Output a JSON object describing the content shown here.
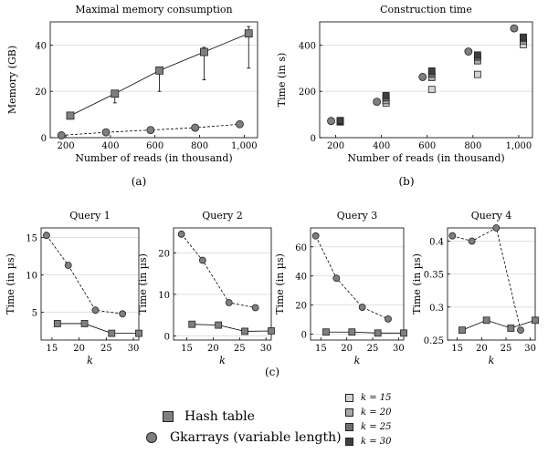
{
  "colors": {
    "marker_fill": "#7f7f7f",
    "marker_stroke": "#222222",
    "grid": "#d9d9d9",
    "k15": "#d3d3d3",
    "k20": "#a9a9a9",
    "k25": "#6e6e6e",
    "k30": "#3f3f3f"
  },
  "captions": {
    "a": "(a)",
    "b": "(b)",
    "c": "(c)"
  },
  "legend": {
    "hash_table": "Hash table",
    "gkarrays": "Gkarrays (variable length)",
    "k15": "k = 15",
    "k20": "k = 20",
    "k25": "k = 25",
    "k30": "k = 30"
  },
  "chart_data": [
    {
      "id": "memory",
      "type": "line",
      "title": "Maximal memory consumption",
      "xlabel": "Number of reads (in thousand)",
      "ylabel": "Memory (GB)",
      "xlim": [
        130,
        1060
      ],
      "ylim": [
        0,
        50
      ],
      "xticks": [
        200,
        400,
        600,
        800,
        1000
      ],
      "xtick_labels": [
        "200",
        "400",
        "600",
        "800",
        "1,000"
      ],
      "yticks": [
        0,
        20,
        40
      ],
      "grid": "horizontal",
      "series": [
        {
          "name": "Hash table",
          "marker": "square",
          "dash": false,
          "x": [
            220,
            420,
            620,
            820,
            1020
          ],
          "y": [
            9.5,
            19,
            29,
            37,
            45
          ],
          "err_low": [
            9.5,
            15,
            20,
            25,
            30
          ],
          "err_high": [
            9.5,
            20,
            30,
            39,
            48
          ]
        },
        {
          "name": "Gkarrays (variable length)",
          "marker": "circle",
          "dash": true,
          "x": [
            180,
            380,
            580,
            780,
            980
          ],
          "y": [
            1,
            2.3,
            3.3,
            4.3,
            5.8
          ]
        }
      ]
    },
    {
      "id": "construction",
      "type": "scatter",
      "title": "Construction time",
      "xlabel": "Number of reads (in thousand)",
      "ylabel": "Time (in s)",
      "xlim": [
        130,
        1060
      ],
      "ylim": [
        0,
        500
      ],
      "xticks": [
        200,
        400,
        600,
        800,
        1000
      ],
      "xtick_labels": [
        "200",
        "400",
        "600",
        "800",
        "1,000"
      ],
      "yticks": [
        0,
        200,
        400
      ],
      "grid": "horizontal",
      "circle_points": [
        {
          "x": 180,
          "y": 72
        },
        {
          "x": 380,
          "y": 155
        },
        {
          "x": 580,
          "y": 262
        },
        {
          "x": 780,
          "y": 372
        },
        {
          "x": 980,
          "y": 472
        }
      ],
      "square_series": [
        {
          "name": "k = 15",
          "color_key": "k15",
          "x": [
            220,
            420,
            620,
            820,
            1020
          ],
          "y": [
            68,
            150,
            208,
            273,
            402
          ]
        },
        {
          "name": "k = 20",
          "color_key": "k20",
          "x": [
            220,
            420,
            620,
            820,
            1020
          ],
          "y": [
            70,
            160,
            260,
            332,
            418
          ]
        },
        {
          "name": "k = 25",
          "color_key": "k25",
          "x": [
            220,
            420,
            620,
            820,
            1020
          ],
          "y": [
            72,
            172,
            276,
            348,
            428
          ]
        },
        {
          "name": "k = 30",
          "color_key": "k30",
          "x": [
            220,
            420,
            620,
            820,
            1020
          ],
          "y": [
            74,
            182,
            288,
            357,
            434
          ]
        }
      ]
    },
    {
      "id": "q1",
      "type": "line",
      "title": "Query 1",
      "xlabel": "k",
      "ylabel": "Time (in µs)",
      "xlim": [
        13,
        31
      ],
      "ylim": [
        1.3,
        16.3
      ],
      "xticks": [
        15,
        20,
        25,
        30
      ],
      "yticks": [
        5,
        10,
        15
      ],
      "ytick_labels": [
        "5",
        "10",
        "15"
      ],
      "grid": "horizontal",
      "series": [
        {
          "name": "Gkarrays (variable length)",
          "marker": "circle",
          "dash": true,
          "x": [
            14,
            18,
            23,
            28
          ],
          "y": [
            15.3,
            11.3,
            5.3,
            4.8
          ]
        },
        {
          "name": "Hash table",
          "marker": "square",
          "dash": false,
          "x": [
            16,
            21,
            26,
            31
          ],
          "y": [
            3.5,
            3.5,
            2.2,
            2.2
          ]
        }
      ]
    },
    {
      "id": "q2",
      "type": "line",
      "title": "Query 2",
      "xlabel": "k",
      "ylabel": "Time (in µs)",
      "xlim": [
        12.5,
        31
      ],
      "ylim": [
        -1,
        26
      ],
      "xticks": [
        15,
        20,
        25,
        30
      ],
      "yticks": [
        0,
        10,
        20
      ],
      "ytick_labels": [
        "0",
        "10",
        "20"
      ],
      "grid": "horizontal",
      "series": [
        {
          "name": "Gkarrays (variable length)",
          "marker": "circle",
          "dash": true,
          "x": [
            14,
            18,
            23,
            28
          ],
          "y": [
            24.5,
            18.2,
            8,
            6.8
          ]
        },
        {
          "name": "Hash table",
          "marker": "square",
          "dash": false,
          "x": [
            16,
            21,
            26,
            31
          ],
          "y": [
            2.8,
            2.6,
            1.1,
            1.2
          ]
        }
      ]
    },
    {
      "id": "q3",
      "type": "line",
      "title": "Query 3",
      "xlabel": "k",
      "ylabel": "Time (in µs)",
      "xlim": [
        13,
        31
      ],
      "ylim": [
        -4,
        73
      ],
      "xticks": [
        15,
        20,
        25,
        30
      ],
      "yticks": [
        0,
        20,
        40,
        60
      ],
      "ytick_labels": [
        "0",
        "20",
        "40",
        "60"
      ],
      "grid": "horizontal",
      "series": [
        {
          "name": "Gkarrays (variable length)",
          "marker": "circle",
          "dash": true,
          "x": [
            14,
            18,
            23,
            28
          ],
          "y": [
            67.5,
            38.5,
            18.5,
            10.5
          ]
        },
        {
          "name": "Hash table",
          "marker": "square",
          "dash": false,
          "x": [
            16,
            21,
            26,
            31
          ],
          "y": [
            1.5,
            1.5,
            0.8,
            0.8
          ]
        }
      ]
    },
    {
      "id": "q4",
      "type": "line",
      "title": "Query 4",
      "xlabel": "k",
      "ylabel": "Time (in µs)",
      "xlim": [
        13,
        31
      ],
      "ylim": [
        0.25,
        0.42
      ],
      "xticks": [
        15,
        20,
        25,
        30
      ],
      "yticks": [
        0.25,
        0.3,
        0.35,
        0.4
      ],
      "ytick_labels": [
        "0.25",
        "0.3",
        "0.35",
        "0.4"
      ],
      "grid": "horizontal",
      "series": [
        {
          "name": "Gkarrays (variable length)",
          "marker": "circle",
          "dash": true,
          "x": [
            14,
            18,
            23,
            28
          ],
          "y": [
            0.408,
            0.4,
            0.42,
            0.265
          ]
        },
        {
          "name": "Hash table",
          "marker": "square",
          "dash": false,
          "x": [
            16,
            21,
            26,
            31
          ],
          "y": [
            0.265,
            0.28,
            0.268,
            0.28
          ]
        }
      ]
    }
  ]
}
